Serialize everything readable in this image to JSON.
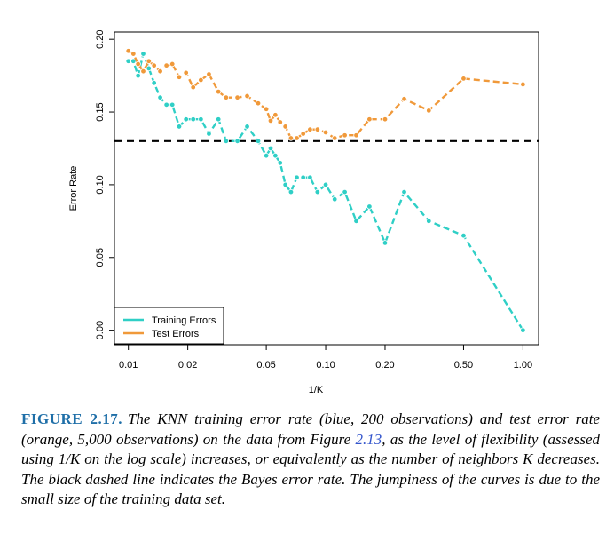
{
  "chart_data": {
    "type": "line",
    "xlabel": "1/K",
    "ylabel": "Error Rate",
    "x_scale": "log",
    "xlim": [
      0.0085,
      1.2
    ],
    "ylim": [
      -0.01,
      0.205
    ],
    "x_ticks": [
      0.01,
      0.02,
      0.05,
      0.1,
      0.2,
      0.5,
      1.0
    ],
    "x_tick_labels": [
      "0.01",
      "0.02",
      "0.05",
      "0.10",
      "0.20",
      "0.50",
      "1.00"
    ],
    "y_ticks": [
      0.0,
      0.05,
      0.1,
      0.15,
      0.2
    ],
    "y_tick_labels": [
      "0.00",
      "0.05",
      "0.10",
      "0.15",
      "0.20"
    ],
    "legend_position": "bottom-left",
    "hline": {
      "y": 0.13,
      "style": "dashed",
      "color": "#000000"
    },
    "series": [
      {
        "name": "Training Errors",
        "color": "#2fcfc6",
        "x": [
          0.01,
          0.0106,
          0.0112,
          0.0119,
          0.0127,
          0.0135,
          0.0145,
          0.0156,
          0.0167,
          0.0181,
          0.0196,
          0.0213,
          0.0233,
          0.0256,
          0.0286,
          0.0313,
          0.0357,
          0.04,
          0.0455,
          0.05,
          0.0526,
          0.0556,
          0.0588,
          0.0625,
          0.0667,
          0.0714,
          0.0769,
          0.0833,
          0.0909,
          0.1,
          0.1111,
          0.125,
          0.1429,
          0.1667,
          0.2,
          0.25,
          0.3333,
          0.5,
          1.0
        ],
        "y": [
          0.185,
          0.185,
          0.175,
          0.19,
          0.18,
          0.17,
          0.16,
          0.155,
          0.155,
          0.14,
          0.145,
          0.145,
          0.145,
          0.135,
          0.145,
          0.13,
          0.13,
          0.14,
          0.13,
          0.12,
          0.125,
          0.12,
          0.115,
          0.1,
          0.095,
          0.105,
          0.105,
          0.105,
          0.095,
          0.1,
          0.09,
          0.095,
          0.075,
          0.085,
          0.06,
          0.095,
          0.075,
          0.065,
          0.0
        ]
      },
      {
        "name": "Test Errors",
        "color": "#f0993a",
        "x": [
          0.01,
          0.0106,
          0.0112,
          0.0119,
          0.0127,
          0.0135,
          0.0145,
          0.0156,
          0.0167,
          0.0181,
          0.0196,
          0.0213,
          0.0233,
          0.0256,
          0.0286,
          0.0313,
          0.0357,
          0.04,
          0.0455,
          0.05,
          0.0526,
          0.0556,
          0.0588,
          0.0625,
          0.0667,
          0.0714,
          0.0769,
          0.0833,
          0.0909,
          0.1,
          0.1111,
          0.125,
          0.1429,
          0.1667,
          0.2,
          0.25,
          0.3333,
          0.5,
          1.0
        ],
        "y": [
          0.192,
          0.19,
          0.183,
          0.178,
          0.185,
          0.182,
          0.178,
          0.182,
          0.183,
          0.174,
          0.177,
          0.167,
          0.172,
          0.176,
          0.164,
          0.16,
          0.16,
          0.161,
          0.156,
          0.152,
          0.144,
          0.148,
          0.143,
          0.14,
          0.132,
          0.132,
          0.135,
          0.138,
          0.138,
          0.136,
          0.132,
          0.134,
          0.134,
          0.145,
          0.145,
          0.159,
          0.151,
          0.173,
          0.169
        ]
      }
    ]
  },
  "caption": {
    "label": "FIGURE 2.17.",
    "text_before_ref": "The KNN training error rate (blue, 200 observations) and test error rate (orange, 5,000 observations) on the data from Figure ",
    "ref": "2.13",
    "text_after_ref": ", as the level of flexibility (assessed using 1/K on the log scale) increases, or equivalently as the number of neighbors K decreases. The black dashed line indicates the Bayes error rate. The jumpiness of the curves is due to the small size of the training data set."
  }
}
